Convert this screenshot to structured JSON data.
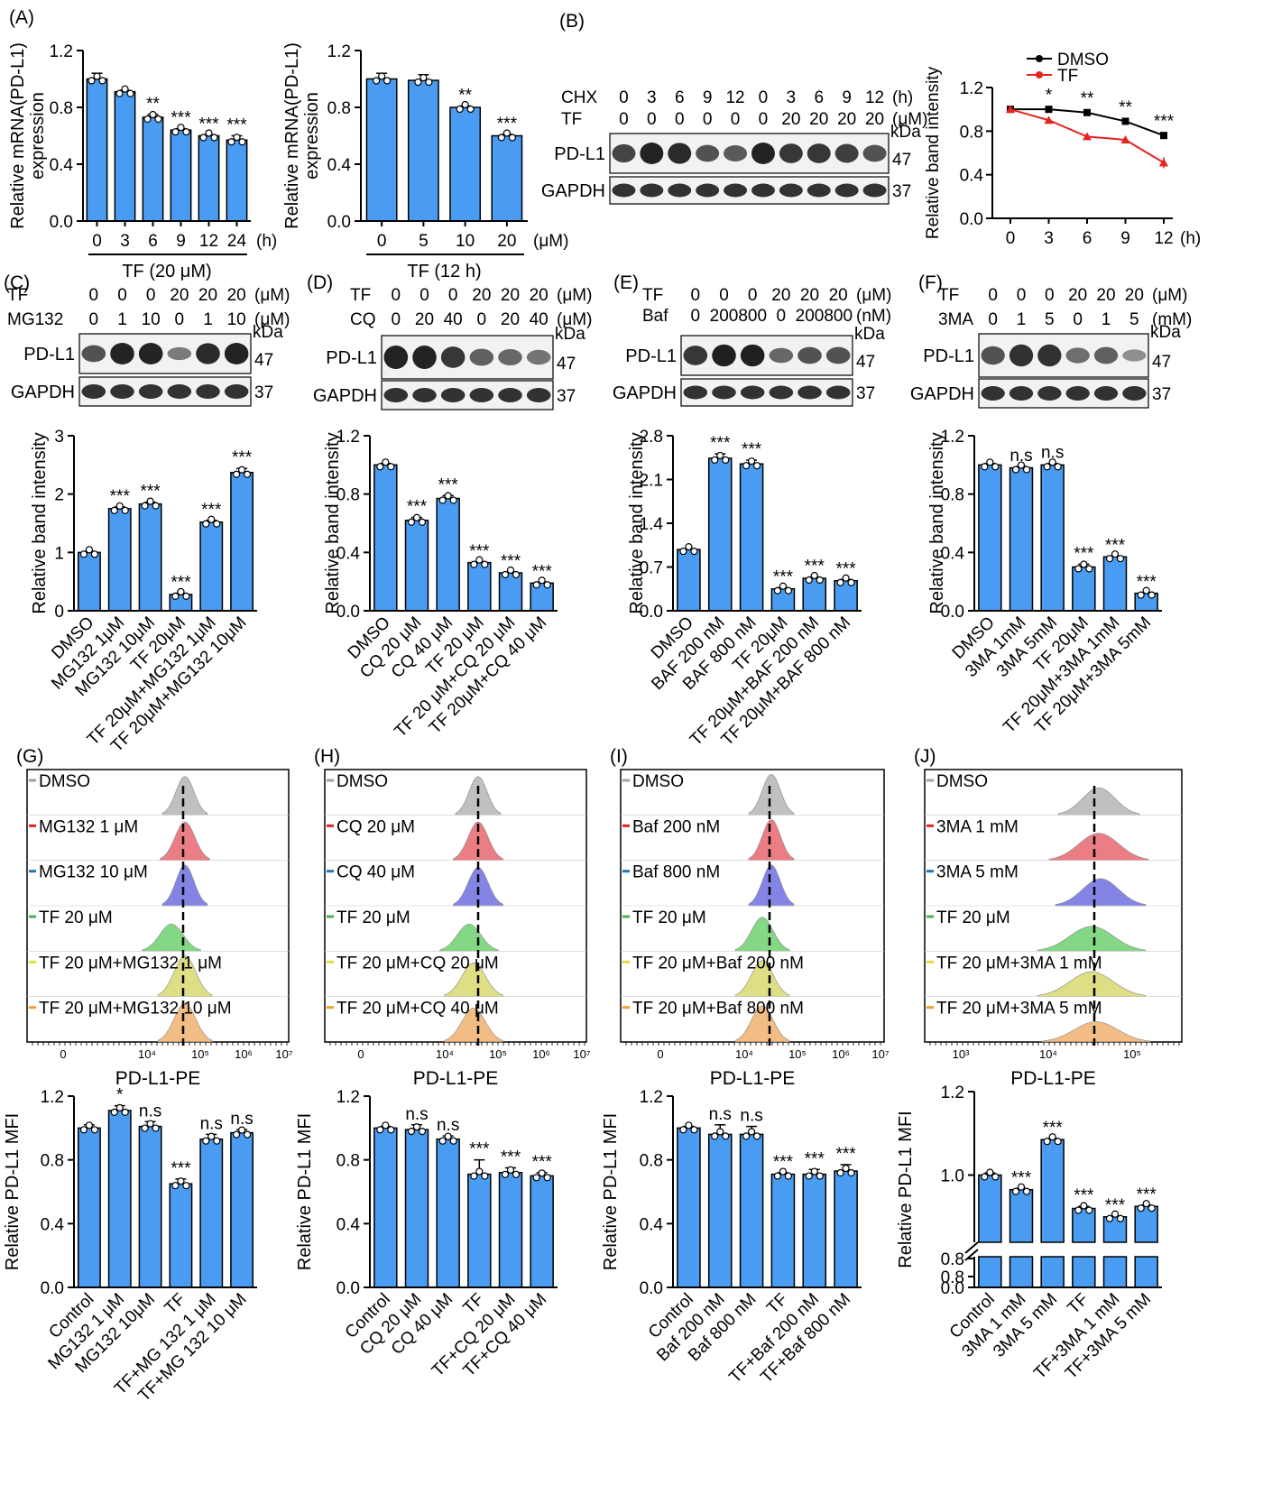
{
  "bar_color": "#4a9cf2",
  "chart_data": [
    {
      "id": "A1",
      "type": "bar",
      "panel": "(A)",
      "ylabel": "Relative mRNA(PD-L1)\nexpression",
      "ylim": [
        0,
        1.2
      ],
      "yticks": [
        "0.0",
        "0.4",
        "0.8",
        "1.2"
      ],
      "categories": [
        "0",
        "3",
        "6",
        "9",
        "12",
        "24"
      ],
      "values": [
        1.0,
        0.91,
        0.73,
        0.64,
        0.6,
        0.57
      ],
      "errors": [
        0.04,
        0.01,
        0.02,
        0.01,
        0.005,
        0.03
      ],
      "sig": [
        "",
        "",
        "**",
        "***",
        "***",
        "***"
      ],
      "unit": "(h)",
      "group_label": "TF (20 μM)"
    },
    {
      "id": "A2",
      "type": "bar",
      "ylabel": "Relative mRNA(PD-L1)\nexpression",
      "ylim": [
        0,
        1.2
      ],
      "yticks": [
        "0.0",
        "0.4",
        "0.8",
        "1.2"
      ],
      "categories": [
        "0",
        "5",
        "10",
        "20"
      ],
      "values": [
        1.0,
        0.99,
        0.8,
        0.6
      ],
      "errors": [
        0.04,
        0.04,
        0.01,
        0.01
      ],
      "sig": [
        "",
        "",
        "**",
        "***"
      ],
      "unit": "(μM)",
      "group_label": "TF (12 h)"
    },
    {
      "id": "B",
      "type": "line",
      "panel": "(B)",
      "ylabel": "Relative band intensity",
      "ylim": [
        0,
        1.2
      ],
      "yticks": [
        "0.0",
        "0.4",
        "0.8",
        "1.2"
      ],
      "x": [
        0,
        3,
        6,
        9,
        12
      ],
      "xticks": [
        "0",
        "3",
        "6",
        "9",
        "12"
      ],
      "xunit": "(h)",
      "series": [
        {
          "name": "DMSO",
          "color": "#000000",
          "values": [
            1.0,
            1.0,
            0.97,
            0.89,
            0.76
          ],
          "errors": [
            0.03,
            0.01,
            0.03,
            0.02,
            0.02
          ]
        },
        {
          "name": "TF",
          "color": "#e8231f",
          "values": [
            1.0,
            0.9,
            0.75,
            0.72,
            0.51
          ],
          "errors": [
            0.03,
            0.02,
            0.03,
            0.03,
            0.05
          ]
        }
      ],
      "sig": [
        "",
        "*",
        "**",
        "**",
        "***"
      ]
    },
    {
      "id": "C",
      "type": "bar",
      "panel": "(C)",
      "ylabel": "Relative band intensity",
      "ylim": [
        0,
        3
      ],
      "yticks": [
        "0",
        "1",
        "2",
        "3"
      ],
      "categories": [
        "DMSO",
        "MG132 1μM",
        "MG132 10μM",
        "TF 20μM",
        "TF 20μM+MG132 1μM",
        "TF 20μM+MG132 10μM"
      ],
      "values": [
        1.0,
        1.75,
        1.83,
        0.28,
        1.52,
        2.37
      ],
      "errors": [
        0.02,
        0.03,
        0.03,
        0.02,
        0.03,
        0.07
      ],
      "sig": [
        "",
        "***",
        "***",
        "***",
        "***",
        "***"
      ]
    },
    {
      "id": "D",
      "type": "bar",
      "panel": "(D)",
      "ylabel": "Relative band intensity",
      "ylim": [
        0,
        1.2
      ],
      "yticks": [
        "0.0",
        "0.4",
        "0.8",
        "1.2"
      ],
      "categories": [
        "DMSO",
        "CQ 20 μM",
        "CQ 40 μM",
        "TF 20 μM",
        "TF 20 μM+CQ 20 μM",
        "TF 20μM+CQ 40 μM"
      ],
      "values": [
        1.0,
        0.62,
        0.77,
        0.33,
        0.26,
        0.19
      ],
      "errors": [
        0.01,
        0.02,
        0.02,
        0.005,
        0.005,
        0.005
      ],
      "sig": [
        "",
        "***",
        "***",
        "***",
        "***",
        "***"
      ]
    },
    {
      "id": "E",
      "type": "bar",
      "panel": "(E)",
      "ylabel": "Relative band intensity",
      "ylim": [
        0,
        2.8
      ],
      "yticks": [
        "0.0",
        "0.7",
        "1.4",
        "2.1",
        "2.8"
      ],
      "categories": [
        "DMSO",
        "BAF 200 nM",
        "BAF 800 nM",
        "TF 20μM",
        "TF 20μM+BAF 200 nM",
        "TF 20μM+BAF 800 nM"
      ],
      "values": [
        0.98,
        2.44,
        2.35,
        0.35,
        0.52,
        0.48
      ],
      "errors": [
        0.01,
        0.07,
        0.06,
        0.02,
        0.02,
        0.02
      ],
      "sig": [
        "",
        "***",
        "***",
        "***",
        "***",
        "***"
      ]
    },
    {
      "id": "F",
      "type": "bar",
      "panel": "(F)",
      "ylabel": "Relative band intensity",
      "ylim": [
        0,
        1.2
      ],
      "yticks": [
        "0.0",
        "0.4",
        "0.8",
        "1.2"
      ],
      "categories": [
        "DMSO",
        "3MA 1mM",
        "3MA 5mM",
        "TF 20μM",
        "TF 20μM+3MA 1mM",
        "TF 20μM+3MA 5mM"
      ],
      "values": [
        1.0,
        0.98,
        1.0,
        0.3,
        0.37,
        0.12
      ],
      "errors": [
        0.01,
        0.01,
        0.01,
        0.02,
        0.005,
        0.005
      ],
      "sig": [
        "",
        "n.s",
        "n.s",
        "***",
        "***",
        "***"
      ]
    },
    {
      "id": "G",
      "type": "bar",
      "ylabel": "Relative PD-L1 MFI",
      "ylim": [
        0,
        1.2
      ],
      "yticks": [
        "0.0",
        "0.4",
        "0.8",
        "1.2"
      ],
      "categories": [
        "Control",
        "MG132 1 μM",
        "MG132 10μM",
        "TF",
        "TF+MG 132 1 μM",
        "TF+MG 132 10 μM"
      ],
      "values": [
        1.0,
        1.11,
        1.01,
        0.65,
        0.93,
        0.97
      ],
      "errors": [
        0.02,
        0.03,
        0.03,
        0.03,
        0.03,
        0.02
      ],
      "sig": [
        "",
        "*",
        "n.s",
        "***",
        "n.s",
        "n.s"
      ]
    },
    {
      "id": "H",
      "type": "bar",
      "ylabel": "Relative PD-L1 MFI",
      "ylim": [
        0,
        1.2
      ],
      "yticks": [
        "0.0",
        "0.4",
        "0.8",
        "1.2"
      ],
      "categories": [
        "Control",
        "CQ 20 μM",
        "CQ 40 μM",
        "TF",
        "TF+CQ 20 μM",
        "TF+CQ 40 μM"
      ],
      "values": [
        1.0,
        0.99,
        0.93,
        0.71,
        0.72,
        0.7
      ],
      "errors": [
        0.01,
        0.03,
        0.02,
        0.09,
        0.03,
        0.02
      ],
      "sig": [
        "",
        "n.s",
        "n.s",
        "***",
        "***",
        "***"
      ]
    },
    {
      "id": "I",
      "type": "bar",
      "ylabel": "Relative PD-L1 MFI",
      "ylim": [
        0,
        1.2
      ],
      "yticks": [
        "0.0",
        "0.4",
        "0.8",
        "1.2"
      ],
      "categories": [
        "Control",
        "Baf 200 nM",
        "Baf 800 nM",
        "TF",
        "TF+Baf 200 nM",
        "TF+Baf 800 nM"
      ],
      "values": [
        1.0,
        0.96,
        0.96,
        0.71,
        0.71,
        0.73
      ],
      "errors": [
        0.01,
        0.06,
        0.05,
        0.01,
        0.03,
        0.04
      ],
      "sig": [
        "",
        "n.s",
        "n.s",
        "***",
        "***",
        "***"
      ]
    },
    {
      "id": "J",
      "type": "bar",
      "ylabel": "Relative PD-L1 MFI",
      "ybreak": true,
      "yticks": [
        "0.0",
        "0.8",
        "0.8",
        "1.0",
        "1.2"
      ],
      "categories": [
        "Control",
        "3MA 1 mM",
        "3MA 5 mM",
        "TF",
        "TF+3MA 1 mM",
        "TF+3MA 5 mM"
      ],
      "values": [
        1.0,
        0.965,
        1.085,
        0.92,
        0.9,
        0.925
      ],
      "errors": [
        0.005,
        0.003,
        0.003,
        0.005,
        0.002,
        0.003
      ],
      "sig": [
        "",
        "***",
        "***",
        "***",
        "***",
        "***"
      ]
    }
  ],
  "blots": {
    "B": {
      "row1_label": "CHX",
      "row1": [
        "0",
        "3",
        "6",
        "9",
        "12",
        "0",
        "3",
        "6",
        "9",
        "12"
      ],
      "row1_unit": "(h)",
      "row2_label": "TF",
      "row2": [
        "0",
        "0",
        "0",
        "0",
        "0",
        "0",
        "20",
        "20",
        "20",
        "20"
      ],
      "row2_unit": "(μM)",
      "band1": "PD-L1",
      "band2": "GAPDH",
      "kda": "kDa",
      "mw1": "47",
      "mw2": "37"
    },
    "C": {
      "row1_label": "TF",
      "row1": [
        "0",
        "0",
        "0",
        "20",
        "20",
        "20"
      ],
      "row1_unit": "(μM)",
      "row2_label": "MG132",
      "row2": [
        "0",
        "1",
        "10",
        "0",
        "1",
        "10"
      ],
      "row2_unit": "(μM)",
      "band1": "PD-L1",
      "band2": "GAPDH",
      "kda": "kDa",
      "mw1": "47",
      "mw2": "37"
    },
    "D": {
      "row1_label": "TF",
      "row1": [
        "0",
        "0",
        "0",
        "20",
        "20",
        "20"
      ],
      "row1_unit": "(μM)",
      "row2_label": "CQ",
      "row2": [
        "0",
        "20",
        "40",
        "0",
        "20",
        "40"
      ],
      "row2_unit": "(μM)",
      "band1": "PD-L1",
      "band2": "GAPDH",
      "kda": "kDa",
      "mw1": "47",
      "mw2": "37"
    },
    "E": {
      "row1_label": "TF",
      "row1": [
        "0",
        "0",
        "0",
        "20",
        "20",
        "20"
      ],
      "row1_unit": "(μM)",
      "row2_label": "Baf",
      "row2": [
        "0",
        "200",
        "800",
        "0",
        "200",
        "800"
      ],
      "row2_unit": "(nM)",
      "band1": "PD-L1",
      "band2": "GAPDH",
      "kda": "kDa",
      "mw1": "47",
      "mw2": "37"
    },
    "F": {
      "row1_label": "TF",
      "row1": [
        "0",
        "0",
        "0",
        "20",
        "20",
        "20"
      ],
      "row1_unit": "(μM)",
      "row2_label": "3MA",
      "row2": [
        "0",
        "1",
        "5",
        "0",
        "1",
        "5"
      ],
      "row2_unit": "(mM)",
      "band1": "PD-L1",
      "band2": "GAPDH",
      "kda": "kDa",
      "mw1": "47",
      "mw2": "37"
    }
  },
  "flow": {
    "xlabel": "PD-L1-PE",
    "colors": [
      "#b5b5b5",
      "#e8676f",
      "#6f6fe0",
      "#6fd06f",
      "#d8d870",
      "#f0b070"
    ],
    "key_colors": [
      "#a0a0a0",
      "#e8231f",
      "#1f77b4",
      "#4caf50",
      "#e0e040",
      "#f0a030"
    ],
    "panels": [
      {
        "panel": "(G)",
        "ticks": [
          "0",
          "10⁴",
          "10⁵",
          "10⁶",
          "10⁷"
        ],
        "labels": [
          "DMSO",
          "MG132 1 μM",
          "MG132 10 μM",
          "TF 20 μM",
          "TF 20 μM+MG132 1 μM",
          "TF 20 μM+MG132 10 μM"
        ]
      },
      {
        "panel": "(H)",
        "ticks": [
          "0",
          "10⁴",
          "10⁵",
          "10⁶",
          "10⁷"
        ],
        "labels": [
          "DMSO",
          "CQ 20 μM",
          "CQ 40 μM",
          "TF 20 μM",
          "TF 20 μM+CQ 20 μM",
          "TF 20 μM+CQ 40 μM"
        ]
      },
      {
        "panel": "(I)",
        "ticks": [
          "0",
          "10⁴",
          "10⁵",
          "10⁶",
          "10⁷"
        ],
        "labels": [
          "DMSO",
          "Baf 200 nM",
          "Baf 800 nM",
          "TF 20 μM",
          "TF 20 μM+Baf 200 nM",
          "TF 20 μM+Baf 800 nM"
        ]
      },
      {
        "panel": "(J)",
        "ticks": [
          "10³",
          "10⁴",
          "10⁵"
        ],
        "labels": [
          "DMSO",
          "3MA 1 mM",
          "3MA 5 mM",
          "TF 20 μM",
          "TF 20 μM+3MA 1 mM",
          "TF 20 μM+3MA 5 mM"
        ]
      }
    ]
  }
}
